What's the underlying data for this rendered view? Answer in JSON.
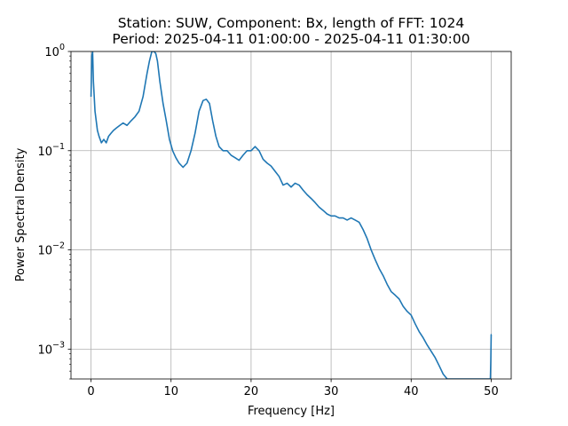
{
  "chart_data": {
    "type": "line",
    "title_line1": "Station: SUW, Component: Bx, length of FFT: 1024",
    "title_line2": "Period: 2025-04-11 01:00:00 - 2025-04-11 01:30:00",
    "xlabel": "Frequency [Hz]",
    "ylabel": "Power Spectral Density",
    "xlim": [
      -2.5,
      52.5
    ],
    "ylim": [
      0.0005,
      1
    ],
    "yscale": "log",
    "grid": true,
    "line_color": "#1f77b4",
    "x_ticks": [
      0,
      10,
      20,
      30,
      40,
      50
    ],
    "x_tick_labels": [
      "0",
      "10",
      "20",
      "30",
      "40",
      "50"
    ],
    "y_ticks": [
      0.001,
      0.01,
      0.1,
      1
    ],
    "y_tick_base": [
      "10",
      "10",
      "10",
      "10"
    ],
    "y_tick_exp": [
      "−3",
      "−2",
      "−1",
      "0"
    ],
    "series": [
      {
        "x": [
          0.0,
          0.1,
          0.2,
          0.3,
          0.5,
          0.8,
          1.0,
          1.3,
          1.6,
          1.9,
          2.2,
          2.5,
          2.8,
          3.2,
          3.6,
          4.0,
          4.5,
          5.0,
          5.5,
          6.0,
          6.5,
          7.0,
          7.3,
          7.6,
          7.9,
          8.1,
          8.3,
          8.6,
          9.0,
          9.4,
          9.8,
          10.2,
          10.6,
          11.0,
          11.5,
          12.0,
          12.5,
          13.0,
          13.5,
          14.0,
          14.4,
          14.8,
          15.2,
          15.6,
          16.0,
          16.5,
          17.0,
          17.5,
          18.0,
          18.5,
          19.0,
          19.5,
          20.0,
          20.5,
          21.0,
          21.5,
          22.0,
          22.5,
          23.0,
          23.5,
          24.0,
          24.5,
          25.0,
          25.5,
          26.0,
          26.5,
          27.0,
          27.5,
          28.0,
          28.5,
          29.0,
          29.5,
          30.0,
          30.5,
          31.0,
          31.5,
          32.0,
          32.5,
          33.0,
          33.5,
          34.0,
          34.5,
          35.0,
          35.5,
          36.0,
          36.5,
          37.0,
          37.5,
          38.0,
          38.5,
          39.0,
          39.5,
          40.0,
          40.5,
          41.0,
          41.5,
          42.0,
          42.5,
          43.0,
          43.5,
          44.0,
          44.5,
          49.9,
          49.95,
          50.0,
          50.05
        ],
        "y": [
          0.35,
          0.9,
          1.0,
          0.5,
          0.25,
          0.16,
          0.14,
          0.12,
          0.13,
          0.12,
          0.14,
          0.15,
          0.16,
          0.17,
          0.18,
          0.19,
          0.18,
          0.2,
          0.22,
          0.25,
          0.35,
          0.6,
          0.8,
          1.0,
          1.0,
          0.95,
          0.8,
          0.5,
          0.3,
          0.2,
          0.13,
          0.1,
          0.085,
          0.075,
          0.068,
          0.075,
          0.1,
          0.15,
          0.25,
          0.32,
          0.33,
          0.3,
          0.2,
          0.14,
          0.11,
          0.1,
          0.1,
          0.09,
          0.085,
          0.08,
          0.09,
          0.1,
          0.1,
          0.11,
          0.1,
          0.082,
          0.075,
          0.07,
          0.062,
          0.055,
          0.045,
          0.047,
          0.043,
          0.047,
          0.045,
          0.04,
          0.036,
          0.033,
          0.03,
          0.027,
          0.025,
          0.023,
          0.022,
          0.022,
          0.021,
          0.021,
          0.02,
          0.021,
          0.02,
          0.019,
          0.016,
          0.013,
          0.01,
          0.008,
          0.0065,
          0.0055,
          0.0045,
          0.0038,
          0.0035,
          0.0032,
          0.0027,
          0.0024,
          0.0022,
          0.0018,
          0.0015,
          0.0013,
          0.0011,
          0.00095,
          0.00082,
          0.00068,
          0.00056,
          0.0005,
          0.0005,
          0.00075,
          0.0014,
          0.0014
        ]
      }
    ]
  }
}
